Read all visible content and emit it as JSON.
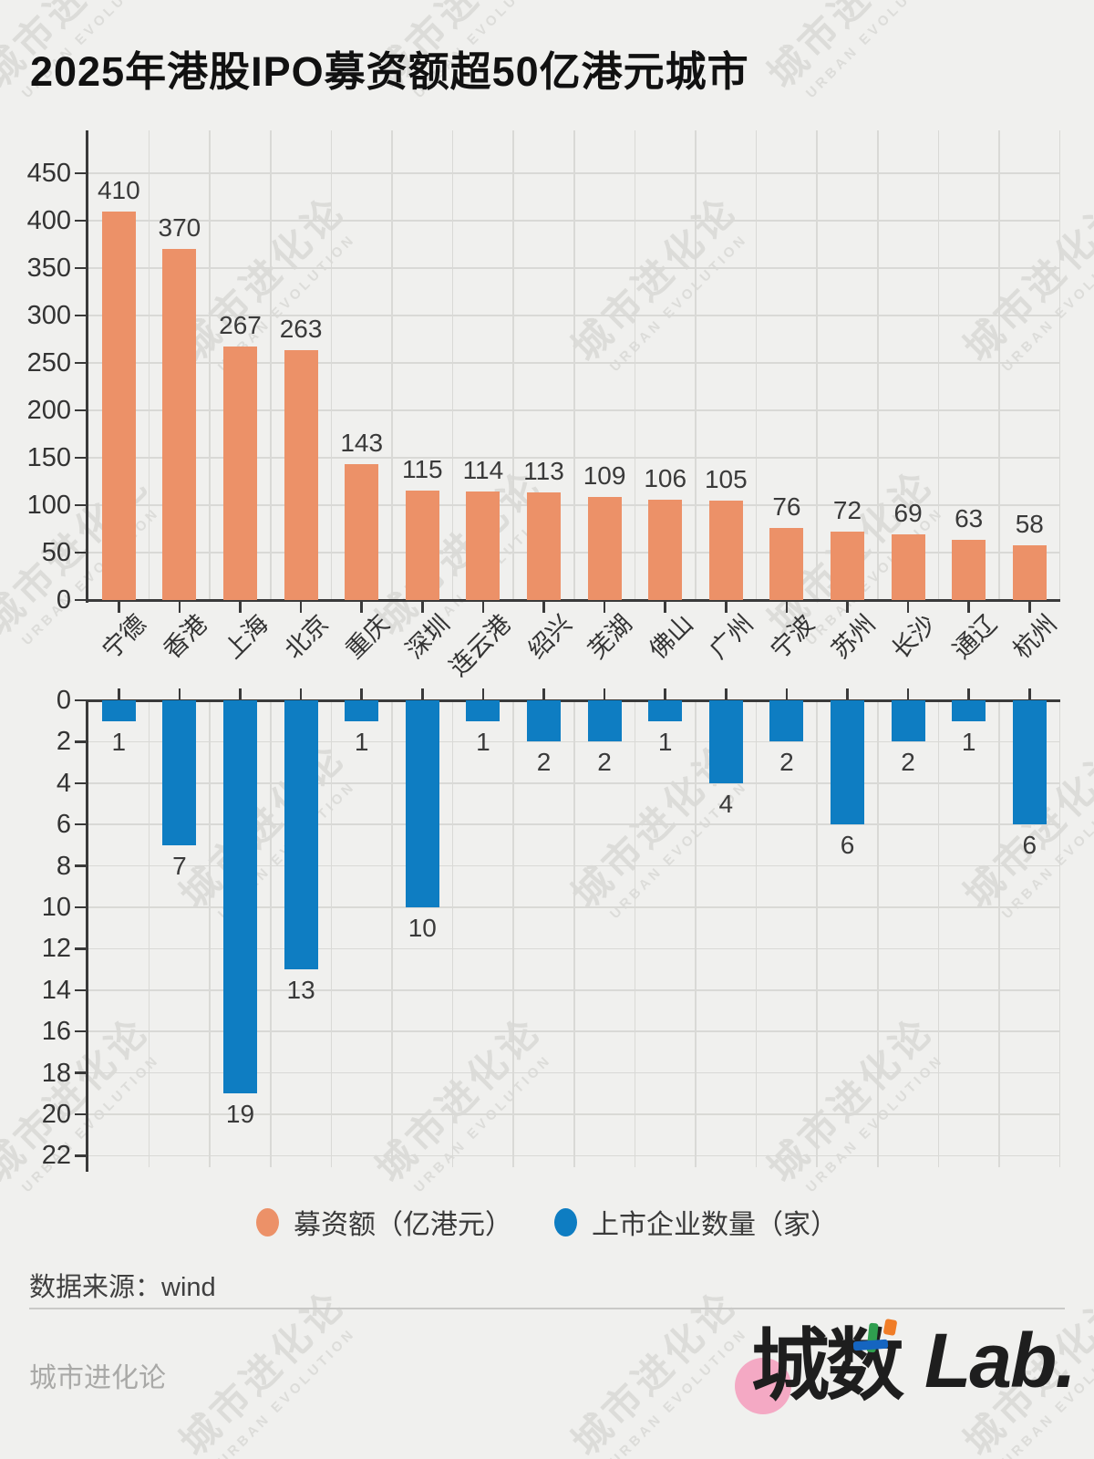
{
  "title": "2025年港股IPO募资额超50亿港元城市",
  "chart_data": {
    "type": "bar",
    "categories": [
      "宁德",
      "香港",
      "上海",
      "北京",
      "重庆",
      "深圳",
      "连云港",
      "绍兴",
      "芜湖",
      "佛山",
      "广州",
      "宁波",
      "苏州",
      "长沙",
      "通辽",
      "杭州"
    ],
    "series": [
      {
        "name": "募资额（亿港元）",
        "color": "#EC9168",
        "values": [
          410,
          370,
          267,
          263,
          143,
          115,
          114,
          113,
          109,
          106,
          105,
          76,
          72,
          69,
          63,
          58
        ],
        "panel": "top",
        "axis": {
          "min": 0,
          "max": 450,
          "step": 50,
          "direction": "up",
          "ticks": [
            0,
            50,
            100,
            150,
            200,
            250,
            300,
            350,
            400,
            450
          ]
        }
      },
      {
        "name": "上市企业数量（家）",
        "color": "#0E7DC2",
        "values": [
          1,
          7,
          19,
          13,
          1,
          10,
          1,
          2,
          2,
          1,
          4,
          2,
          6,
          2,
          1,
          6
        ],
        "panel": "bottom-inverted",
        "axis": {
          "min": 0,
          "max": 22,
          "step": 2,
          "direction": "down",
          "ticks": [
            0,
            2,
            4,
            6,
            8,
            10,
            12,
            14,
            16,
            18,
            20,
            22
          ]
        }
      }
    ],
    "grid": true,
    "legend_position": "bottom",
    "bar_value_labels": true
  },
  "legend": {
    "items": [
      {
        "label": "募资额（亿港元）",
        "color": "#EC9168"
      },
      {
        "label": "上市企业数量（家）",
        "color": "#0E7DC2"
      }
    ]
  },
  "source": {
    "label": "数据来源：wind"
  },
  "footer": {
    "credit": "城市进化论",
    "logo_cn": "城数",
    "logo_latin": "Lab."
  },
  "watermark": {
    "line1": "城市进化论",
    "line2": "URBAN EVOLUTION"
  },
  "colors": {
    "background": "#F0F0EE",
    "axis": "#3A3A3A",
    "grid": "#D9D9D6",
    "tick_text": "#333333",
    "value_text": "#3A3A3A",
    "divider": "#C9C9C7",
    "footer_text": "#A9A9A7",
    "logo_pink": "#F4A9C4",
    "logo_text": "#1E1E1E"
  }
}
